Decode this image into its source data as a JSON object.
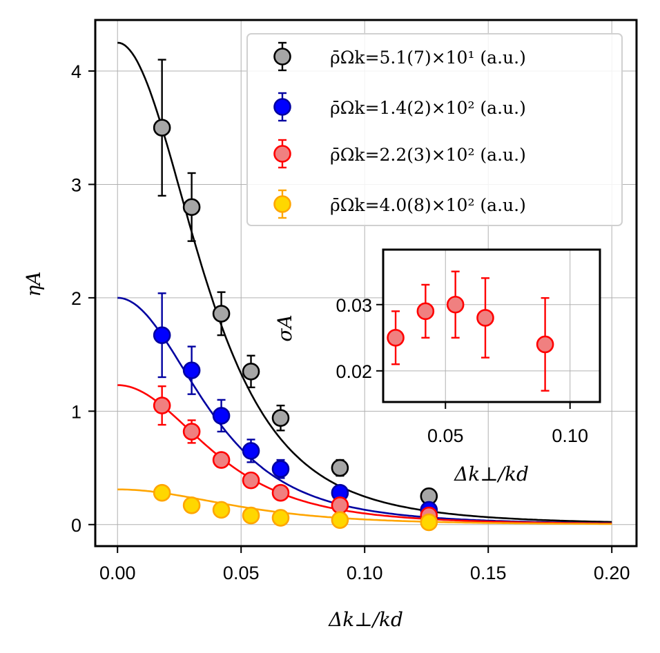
{
  "chart_data": [
    {
      "type": "scatter",
      "xlabel": "Δk⊥/kd",
      "ylabel": "ηA",
      "xlim": [
        -0.009,
        0.21
      ],
      "ylim": [
        -0.19,
        4.45
      ],
      "xticks": [
        "0.00",
        "0.05",
        "0.10",
        "0.15",
        "0.20"
      ],
      "yticks": [
        "0",
        "1",
        "2",
        "3",
        "4"
      ],
      "grid": true,
      "legend": "top-right",
      "series": [
        {
          "name": "ρ̄Ωk=5.1(7)×10¹ (a.u.)",
          "color": "#000000",
          "fill": "#a6a6a6",
          "x": [
            0.018,
            0.03,
            0.042,
            0.054,
            0.066,
            0.09,
            0.126
          ],
          "y": [
            3.5,
            2.8,
            1.86,
            1.35,
            0.94,
            0.5,
            0.25
          ],
          "yerr": [
            0.6,
            0.3,
            0.19,
            0.14,
            0.11,
            0.07,
            0.03
          ],
          "fit_y0": 4.25
        },
        {
          "name": "ρ̄Ωk=1.4(2)×10² (a.u.)",
          "color": "#0000a0",
          "fill": "#0000ff",
          "x": [
            0.018,
            0.03,
            0.042,
            0.054,
            0.066,
            0.09,
            0.126
          ],
          "y": [
            1.67,
            1.36,
            0.96,
            0.65,
            0.49,
            0.28,
            0.13
          ],
          "yerr": [
            0.37,
            0.21,
            0.14,
            0.1,
            0.08,
            0.05,
            0.03
          ],
          "fit_y0": 2.0
        },
        {
          "name": "ρ̄Ωk=2.2(3)×10² (a.u.)",
          "color": "#ff0000",
          "fill": "#f08080",
          "x": [
            0.018,
            0.03,
            0.042,
            0.054,
            0.066,
            0.09,
            0.126
          ],
          "y": [
            1.05,
            0.82,
            0.57,
            0.39,
            0.28,
            0.17,
            0.08
          ],
          "yerr": [
            0.17,
            0.1,
            0.06,
            0.05,
            0.04,
            0.03,
            0.02
          ],
          "fit_y0": 1.23
        },
        {
          "name": "ρ̄Ωk=4.0(8)×10² (a.u.)",
          "color": "#ffa500",
          "fill": "#ffd700",
          "x": [
            0.018,
            0.03,
            0.042,
            0.054,
            0.066,
            0.09,
            0.126
          ],
          "y": [
            0.28,
            0.17,
            0.13,
            0.08,
            0.06,
            0.04,
            0.02
          ],
          "yerr": [
            0.03,
            0.02,
            0.02,
            0.01,
            0.01,
            0.01,
            0.01
          ],
          "fit_y0": 0.31
        }
      ]
    },
    {
      "type": "scatter",
      "inset": true,
      "xlabel": "Δk⊥/kd",
      "ylabel": "σA",
      "xlim": [
        0.025,
        0.112
      ],
      "ylim": [
        0.0153,
        0.0383
      ],
      "xticks": [
        "0.05",
        "0.10"
      ],
      "yticks": [
        "0.02",
        "0.03"
      ],
      "grid": true,
      "series": [
        {
          "color": "#ff0000",
          "fill": "#f08080",
          "x": [
            0.03,
            0.042,
            0.054,
            0.066,
            0.09
          ],
          "y": [
            0.025,
            0.029,
            0.03,
            0.028,
            0.024
          ],
          "yerr": [
            0.004,
            0.004,
            0.005,
            0.006,
            0.007
          ]
        }
      ]
    }
  ]
}
